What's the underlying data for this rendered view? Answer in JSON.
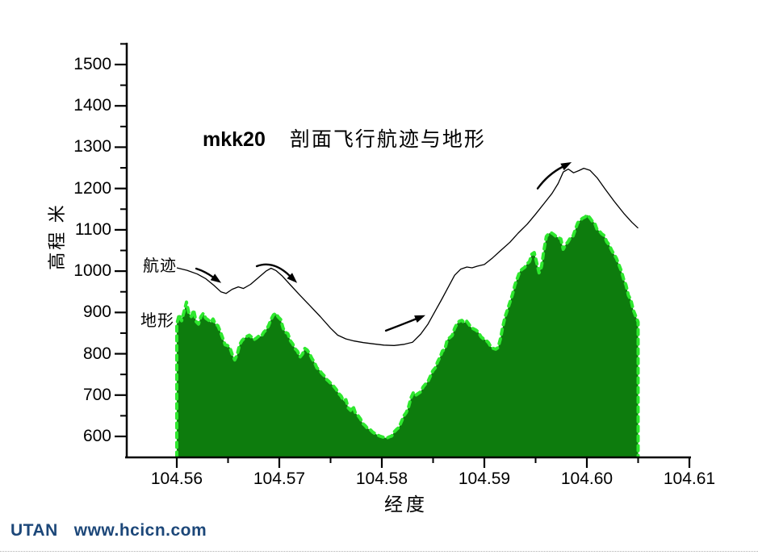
{
  "title": {
    "model": "mkk20",
    "text": "剖面飞行航迹与地形"
  },
  "footer": {
    "brand": "UTAN",
    "site": "www.hcicn.com",
    "color": "#1c4779"
  },
  "colors": {
    "terrain_fill": "#0d7c0d",
    "terrain_outline": "#2ee82e",
    "trajectory_line": "#000000",
    "axis": "#000000"
  },
  "chart_data": {
    "type": "area",
    "title": "mkk20  剖面飞行航迹与地形",
    "xlabel": "经度",
    "ylabel": "高程 米",
    "xlim": [
      104.555,
      104.61
    ],
    "ylim": [
      548,
      1550
    ],
    "grid": false,
    "legend_position": "inline-labels",
    "x_ticks": {
      "labels": [
        "104.56",
        "104.57",
        "104.58",
        "104.59",
        "104.60",
        "104.61"
      ],
      "values": [
        104.56,
        104.57,
        104.58,
        104.59,
        104.6,
        104.61
      ],
      "minor_values": [
        104.565,
        104.575,
        104.585,
        104.595,
        104.605
      ]
    },
    "y_ticks": {
      "labels": [
        "600",
        "700",
        "800",
        "900",
        "1000",
        "1100",
        "1200",
        "1300",
        "1400",
        "1500"
      ],
      "values": [
        600,
        700,
        800,
        900,
        1000,
        1100,
        1200,
        1300,
        1400,
        1500
      ],
      "minor_values": [
        650,
        750,
        850,
        950,
        1050,
        1150,
        1250,
        1350,
        1450,
        1550
      ]
    },
    "series": [
      {
        "name": "地形",
        "type": "area",
        "x_start": 104.56,
        "x_end": 104.605,
        "values": [
          872,
          895,
          880,
          902,
          925,
          898,
          890,
          906,
          878,
          872,
          890,
          898,
          886,
          882,
          876,
          884,
          872,
          868,
          854,
          838,
          822,
          820,
          815,
          798,
          785,
          798,
          822,
          832,
          838,
          842,
          845,
          840,
          834,
          838,
          843,
          842,
          852,
          858,
          868,
          883,
          894,
          898,
          889,
          883,
          862,
          852,
          849,
          832,
          824,
          812,
          806,
          792,
          799,
          813,
          809,
          800,
          788,
          779,
          766,
          761,
          753,
          747,
          738,
          733,
          727,
          721,
          714,
          704,
          698,
          686,
          689,
          669,
          663,
          673,
          656,
          651,
          643,
          631,
          626,
          619,
          617,
          611,
          607,
          604,
          601,
          599,
          597,
          596,
          599,
          601,
          611,
          617,
          622,
          636,
          650,
          658,
          672,
          694,
          707,
          700,
          704,
          708,
          720,
          727,
          733,
          746,
          759,
          766,
          781,
          792,
          807,
          811,
          834,
          839,
          844,
          861,
          873,
          879,
          881,
          875,
          879,
          871,
          863,
          860,
          857,
          851,
          841,
          836,
          833,
          827,
          817,
          813,
          811,
          815,
          836,
          866,
          891,
          908,
          926,
          944,
          967,
          983,
          999,
          1005,
          1009,
          1018,
          1023,
          1041,
          1045,
          1021,
          996,
          1011,
          1051,
          1084,
          1091,
          1093,
          1089,
          1084,
          1081,
          1078,
          1053,
          1064,
          1071,
          1081,
          1084,
          1101,
          1117,
          1123,
          1128,
          1131,
          1136,
          1129,
          1121,
          1117,
          1101,
          1097,
          1090,
          1086,
          1071,
          1064,
          1051,
          1041,
          1031,
          1016,
          1001,
          981,
          966,
          941,
          931,
          906,
          891,
          877
        ]
      },
      {
        "name": "航迹",
        "type": "line",
        "points": [
          [
            104.56,
            1008
          ],
          [
            104.561,
            1002
          ],
          [
            104.562,
            993
          ],
          [
            104.5628,
            982
          ],
          [
            104.5636,
            966
          ],
          [
            104.5643,
            950
          ],
          [
            104.5648,
            946
          ],
          [
            104.5654,
            956
          ],
          [
            104.566,
            962
          ],
          [
            104.5665,
            958
          ],
          [
            104.5672,
            968
          ],
          [
            104.568,
            985
          ],
          [
            104.5687,
            1000
          ],
          [
            104.5692,
            1007
          ],
          [
            104.5697,
            1001
          ],
          [
            104.5703,
            988
          ],
          [
            104.5711,
            966
          ],
          [
            104.572,
            942
          ],
          [
            104.573,
            916
          ],
          [
            104.574,
            890
          ],
          [
            104.575,
            862
          ],
          [
            104.5757,
            845
          ],
          [
            104.5765,
            836
          ],
          [
            104.5773,
            831
          ],
          [
            104.5782,
            827
          ],
          [
            104.5792,
            824
          ],
          [
            104.5802,
            821
          ],
          [
            104.5812,
            820
          ],
          [
            104.5822,
            823
          ],
          [
            104.583,
            828
          ],
          [
            104.5838,
            848
          ],
          [
            104.5845,
            872
          ],
          [
            104.5852,
            903
          ],
          [
            104.5858,
            930
          ],
          [
            104.5865,
            962
          ],
          [
            104.5871,
            990
          ],
          [
            104.5877,
            1005
          ],
          [
            104.5883,
            1010
          ],
          [
            104.5888,
            1008
          ],
          [
            104.5893,
            1012
          ],
          [
            104.59,
            1016
          ],
          [
            104.5908,
            1032
          ],
          [
            104.5916,
            1050
          ],
          [
            104.5925,
            1070
          ],
          [
            104.5933,
            1092
          ],
          [
            104.5942,
            1114
          ],
          [
            104.595,
            1138
          ],
          [
            104.5958,
            1163
          ],
          [
            104.5966,
            1188
          ],
          [
            104.5972,
            1212
          ],
          [
            104.5977,
            1240
          ],
          [
            104.5982,
            1247
          ],
          [
            104.5987,
            1238
          ],
          [
            104.5992,
            1243
          ],
          [
            104.5997,
            1249
          ],
          [
            104.6003,
            1244
          ],
          [
            104.601,
            1226
          ],
          [
            104.6018,
            1198
          ],
          [
            104.6027,
            1168
          ],
          [
            104.6036,
            1140
          ],
          [
            104.6044,
            1118
          ],
          [
            104.605,
            1104
          ]
        ]
      }
    ],
    "annotations": {
      "series_labels": [
        {
          "text": "航迹",
          "for": "trajectory"
        },
        {
          "text": "地形",
          "for": "terrain"
        }
      ],
      "arrows": [
        {
          "tail": [
            104.5619,
            1006
          ],
          "mid": [
            104.5627,
            1000
          ],
          "tip": [
            104.5635,
            986
          ]
        },
        {
          "tail": [
            104.5678,
            1012
          ],
          "mid": [
            104.5694,
            1027
          ],
          "tip": [
            104.571,
            989
          ]
        },
        {
          "tail": [
            104.5804,
            856
          ],
          "mid": [
            104.5819,
            870
          ],
          "tip": [
            104.5833,
            884
          ]
        },
        {
          "tail": [
            104.5952,
            1200
          ],
          "mid": [
            104.5962,
            1234
          ],
          "tip": [
            104.5976,
            1252
          ]
        }
      ]
    }
  }
}
